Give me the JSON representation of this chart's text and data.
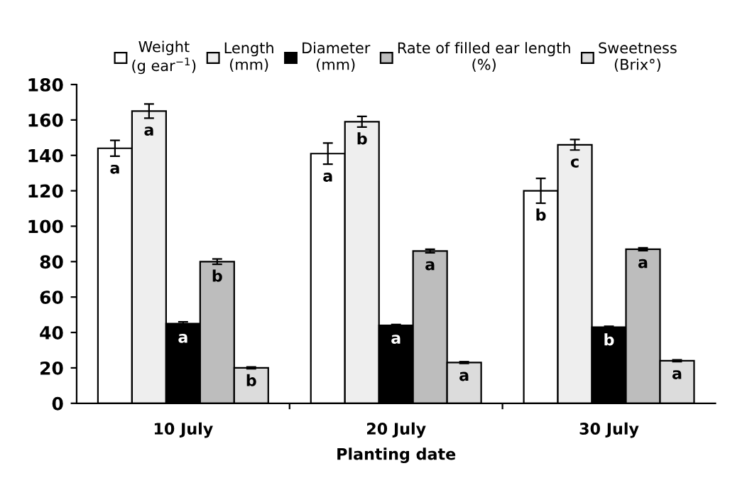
{
  "chart_data": {
    "type": "bar",
    "xlabel": "Planting date",
    "categories": [
      "10 July",
      "20 July",
      "30 July"
    ],
    "series": [
      {
        "name": "Weight\n(g ear$^{−1}$)",
        "color": "#ffffff",
        "values": [
          144,
          141,
          120
        ],
        "errors": [
          4.5,
          6,
          7
        ],
        "value_labels": [
          "a",
          "a",
          "b"
        ]
      },
      {
        "name": "Length\n(mm)",
        "color": "#eeeeee",
        "values": [
          165,
          159,
          146
        ],
        "errors": [
          4,
          3,
          3
        ],
        "value_labels": [
          "a",
          "b",
          "c"
        ]
      },
      {
        "name": "Diameter\n(mm)",
        "color": "#000000",
        "values": [
          45,
          44,
          43
        ],
        "errors": [
          1,
          0.5,
          0.5
        ],
        "value_labels": [
          "a",
          "a",
          "b"
        ]
      },
      {
        "name": "Rate of filled ear length\n(%)",
        "color": "#bdbdbd",
        "values": [
          80,
          86,
          87
        ],
        "errors": [
          1.5,
          1,
          0.8
        ],
        "value_labels": [
          "b",
          "a",
          "a"
        ]
      },
      {
        "name": "Sweetness\n(Brix°)",
        "color": "#dcdcdc",
        "values": [
          20,
          23,
          24
        ],
        "errors": [
          0.5,
          0.5,
          0.5
        ],
        "value_labels": [
          "b",
          "a",
          "a"
        ]
      }
    ],
    "ylim": [
      0,
      180
    ],
    "yticks": [
      0,
      20,
      40,
      60,
      80,
      100,
      120,
      140,
      160,
      180
    ],
    "grid": false,
    "legend": "top"
  }
}
